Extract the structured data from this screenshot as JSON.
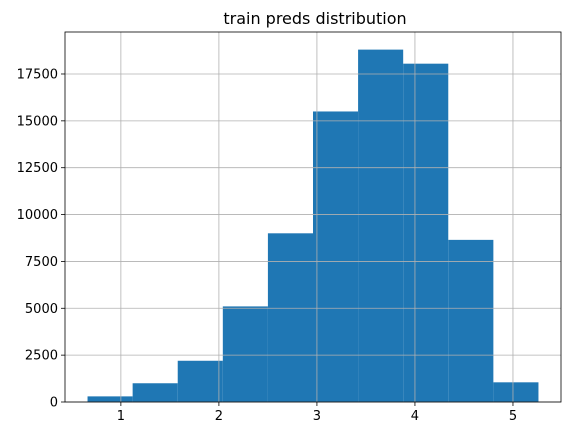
{
  "chart_data": {
    "type": "bar",
    "title": "train preds distribution",
    "xlabel": "",
    "ylabel": "",
    "bins": [
      {
        "x0": 0.66,
        "x1": 1.12,
        "count": 300
      },
      {
        "x0": 1.12,
        "x1": 1.58,
        "count": 1000
      },
      {
        "x0": 1.58,
        "x1": 2.04,
        "count": 2200
      },
      {
        "x0": 2.04,
        "x1": 2.5,
        "count": 5100
      },
      {
        "x0": 2.5,
        "x1": 2.96,
        "count": 9000
      },
      {
        "x0": 2.96,
        "x1": 3.42,
        "count": 15500
      },
      {
        "x0": 3.42,
        "x1": 3.88,
        "count": 18800
      },
      {
        "x0": 3.88,
        "x1": 4.34,
        "count": 18050
      },
      {
        "x0": 4.34,
        "x1": 4.8,
        "count": 8650
      },
      {
        "x0": 4.8,
        "x1": 5.26,
        "count": 1050
      }
    ],
    "xlim": [
      0.43,
      5.49
    ],
    "ylim": [
      0,
      19740
    ],
    "xticks": [
      1,
      2,
      3,
      4,
      5
    ],
    "xtick_labels": [
      "1",
      "2",
      "3",
      "4",
      "5"
    ],
    "yticks": [
      0,
      2500,
      5000,
      7500,
      10000,
      12500,
      15000,
      17500
    ],
    "ytick_labels": [
      "0",
      "2500",
      "5000",
      "7500",
      "10000",
      "12500",
      "15000",
      "17500"
    ],
    "grid": true,
    "bar_color": "#1f77b4",
    "grid_color": "#b0b0b0"
  }
}
